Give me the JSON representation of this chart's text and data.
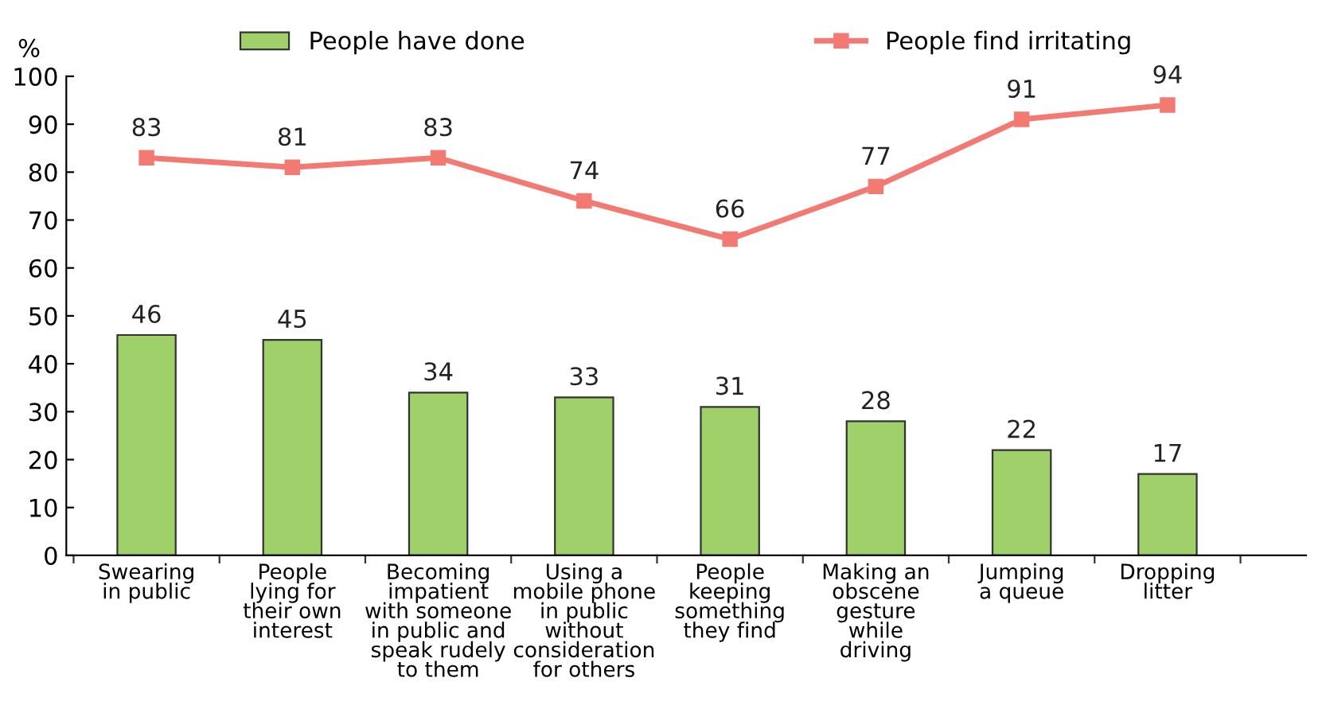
{
  "chart_data": {
    "type": "bar",
    "ylabel": "%",
    "categories": [
      "Swearing\nin public",
      "People\nlying for\ntheir own\ninterest",
      "Becoming\nimpatient\nwith someone\nin public and\nspeak rudely\nto them",
      "Using a\nmobile phone\nin public\nwithout\nconsideration\nfor others",
      "People\nkeeping\nsomething\nthey find",
      "Making an\nobscene\ngesture\nwhile\ndriving",
      "Jumping\na queue",
      "Dropping\nlitter"
    ],
    "series": [
      {
        "name": "People have done",
        "color": "#9fd06a",
        "values": [
          46,
          45,
          34,
          33,
          31,
          28,
          22,
          17
        ]
      },
      {
        "name": "People find irritating",
        "type": "line",
        "color": "#f27a72",
        "marker": "square",
        "values": [
          83,
          81,
          83,
          74,
          66,
          77,
          91,
          94
        ]
      }
    ],
    "ylim": [
      0,
      100
    ],
    "yticks": [
      0,
      10,
      20,
      30,
      40,
      50,
      60,
      70,
      80,
      90,
      100
    ],
    "grid": false,
    "legend": "top",
    "data_labels": true
  }
}
